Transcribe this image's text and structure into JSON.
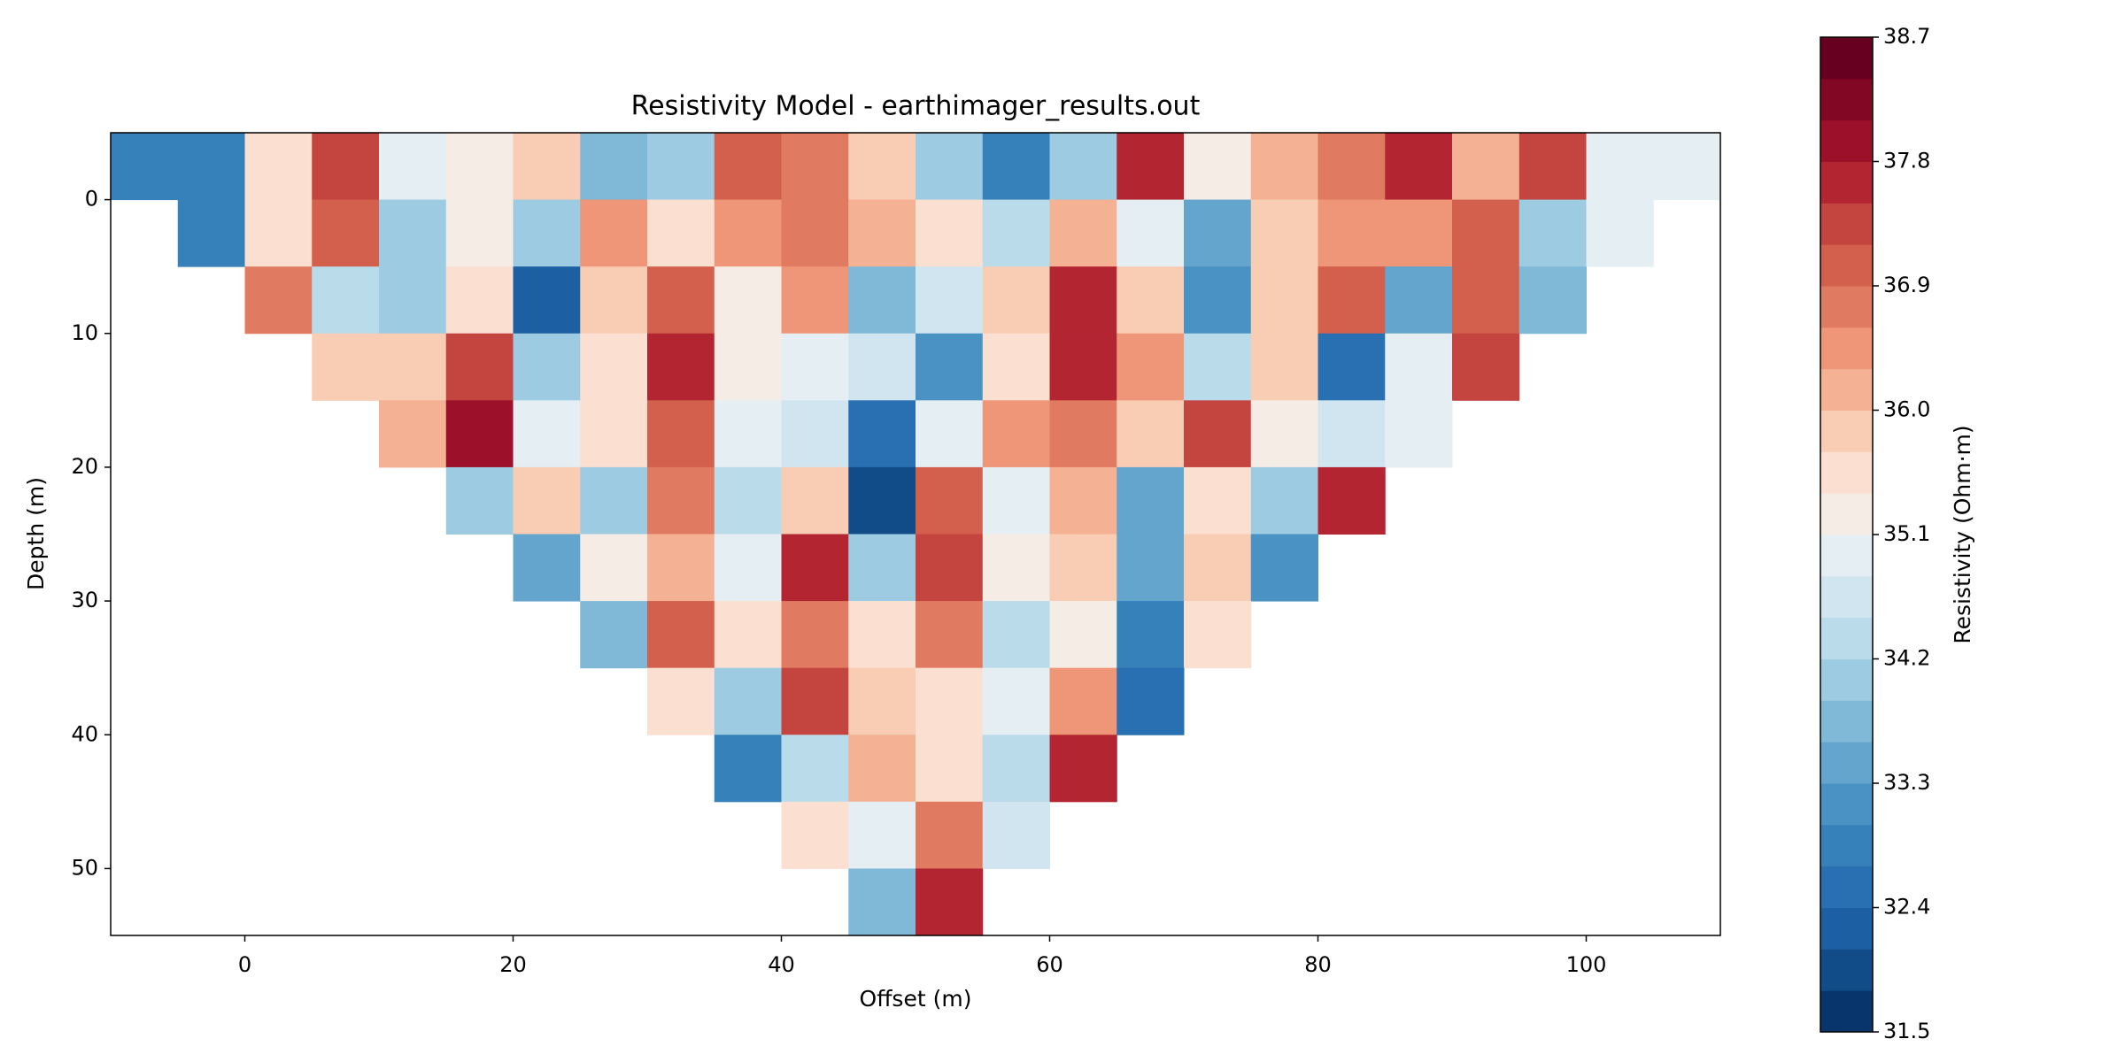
{
  "chart_data": {
    "type": "contourf",
    "title": "Resistivity Model - earthimager_results.out",
    "xlabel": "Offset (m)",
    "ylabel": "Depth (m)",
    "xlim": [
      -10,
      110
    ],
    "xticks": [
      0,
      20,
      40,
      60,
      80,
      100
    ],
    "ylim": [
      55,
      -5
    ],
    "yticks": [
      0,
      10,
      20,
      30,
      40,
      50
    ],
    "x": [
      -7.5,
      -2.5,
      2.5,
      7.5,
      12.5,
      17.5,
      22.5,
      27.5,
      32.5,
      37.5,
      42.5,
      47.5,
      52.5,
      57.5,
      62.5,
      67.5,
      72.5,
      77.5,
      82.5,
      87.5,
      92.5,
      97.5,
      102.5,
      107.5
    ],
    "y": [
      -2.5,
      2.5,
      7.5,
      12.5,
      17.5,
      22.5,
      27.5,
      32.5,
      37.5,
      42.5,
      47.5,
      52.5
    ],
    "z": [
      [
        32.9,
        32.9,
        35.5,
        37.5,
        35.0,
        35.2,
        36.0,
        33.8,
        34.0,
        37.2,
        36.8,
        36.0,
        34.0,
        33.0,
        34.0,
        37.6,
        35.2,
        36.3,
        36.8,
        37.8,
        36.3,
        37.5,
        35.0,
        35.0
      ],
      [
        null,
        32.9,
        35.6,
        37.0,
        34.2,
        35.3,
        34.0,
        36.5,
        35.5,
        36.5,
        36.8,
        36.2,
        35.6,
        34.3,
        36.2,
        35.0,
        33.5,
        36.0,
        36.5,
        36.6,
        37.0,
        34.0,
        35.1,
        null
      ],
      [
        null,
        null,
        36.8,
        34.5,
        34.0,
        35.5,
        32.3,
        36.0,
        37.2,
        35.3,
        36.5,
        33.8,
        34.6,
        36.0,
        37.8,
        36.0,
        33.2,
        35.8,
        37.0,
        33.5,
        37.0,
        33.8,
        null,
        null
      ],
      [
        null,
        null,
        null,
        35.8,
        36.0,
        37.5,
        34.0,
        35.5,
        37.6,
        35.3,
        35.0,
        34.8,
        33.2,
        35.5,
        37.6,
        36.5,
        34.5,
        36.0,
        32.5,
        35.0,
        37.5,
        null,
        null,
        null
      ],
      [
        null,
        null,
        null,
        null,
        36.3,
        38.0,
        35.0,
        35.5,
        37.0,
        35.0,
        34.8,
        32.5,
        35.0,
        36.5,
        36.8,
        35.8,
        37.5,
        35.2,
        34.8,
        35.0,
        null,
        null,
        null,
        null
      ],
      [
        null,
        null,
        null,
        null,
        null,
        34.0,
        36.0,
        34.0,
        36.8,
        34.5,
        36.0,
        32.0,
        37.2,
        35.0,
        36.2,
        33.5,
        35.5,
        34.2,
        37.8,
        null,
        null,
        null,
        null,
        null
      ],
      [
        null,
        null,
        null,
        null,
        null,
        null,
        33.5,
        35.3,
        36.2,
        35.0,
        37.8,
        34.0,
        37.5,
        35.2,
        35.8,
        33.5,
        35.8,
        33.3,
        null,
        null,
        null,
        null,
        null,
        null
      ],
      [
        null,
        null,
        null,
        null,
        null,
        null,
        null,
        33.8,
        37.0,
        35.5,
        36.8,
        35.5,
        36.8,
        34.5,
        35.2,
        33.0,
        35.5,
        null,
        null,
        null,
        null,
        null,
        null,
        null
      ],
      [
        null,
        null,
        null,
        null,
        null,
        null,
        null,
        null,
        35.5,
        34.0,
        37.5,
        35.8,
        35.5,
        35.0,
        36.5,
        32.5,
        null,
        null,
        null,
        null,
        null,
        null,
        null,
        null
      ],
      [
        null,
        null,
        null,
        null,
        null,
        null,
        null,
        null,
        null,
        33.0,
        34.5,
        36.2,
        35.5,
        34.5,
        37.8,
        null,
        null,
        null,
        null,
        null,
        null,
        null,
        null,
        null
      ],
      [
        null,
        null,
        null,
        null,
        null,
        null,
        null,
        null,
        null,
        null,
        35.5,
        35.0,
        36.8,
        34.8,
        null,
        null,
        null,
        null,
        null,
        null,
        null,
        null,
        null,
        null
      ],
      [
        null,
        null,
        null,
        null,
        null,
        null,
        null,
        null,
        null,
        null,
        null,
        33.8,
        37.8,
        null,
        null,
        null,
        null,
        null,
        null,
        null,
        null,
        null,
        null,
        null
      ]
    ],
    "levels": [
      31.5,
      31.8,
      32.1,
      32.4,
      32.7,
      33.0,
      33.3,
      33.6,
      33.9,
      34.2,
      34.5,
      34.8,
      35.1,
      35.4,
      35.7,
      36.0,
      36.3,
      36.6,
      36.9,
      37.2,
      37.5,
      37.8,
      38.1,
      38.4,
      38.7
    ],
    "colors": [
      "#08366c",
      "#114c88",
      "#1c5fa3",
      "#2870b1",
      "#3781ba",
      "#4a92c3",
      "#63a5cd",
      "#80b9d8",
      "#9dcbe2",
      "#b9dbea",
      "#d1e5f0",
      "#e4eef3",
      "#f6ece6",
      "#fbe0d2",
      "#f9ccb4",
      "#f5b193",
      "#ee9677",
      "#e07b61",
      "#d2604d",
      "#c4443f",
      "#b42532",
      "#9c1029",
      "#820724",
      "#670020"
    ],
    "colorbar": {
      "label": "Resistivity (Ohm·m)",
      "lim": [
        31.5,
        38.7
      ],
      "ticks": [
        31.5,
        32.4,
        33.3,
        34.2,
        35.1,
        {
          "value": 36,
          "label": "36.0"
        },
        36.9,
        37.8,
        38.7
      ]
    }
  }
}
